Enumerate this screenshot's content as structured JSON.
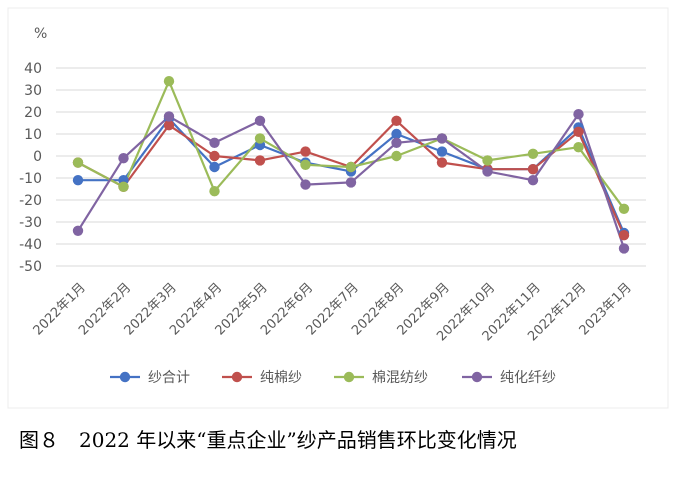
{
  "caption": "图８　2022 年以来“重点企业”纱产品销售环比变化情况",
  "colors": {
    "background": "#ffffff",
    "gridline": "#d9d9d9",
    "text": "#595959"
  },
  "chart_data": {
    "type": "line",
    "ylabel": "%",
    "ylim": [
      -50,
      40
    ],
    "yticks": [
      40,
      30,
      20,
      10,
      0,
      -10,
      -20,
      -30,
      -40,
      -50
    ],
    "ytick_labels": [
      "40",
      "30",
      "20",
      "10",
      "0",
      "-10",
      "-20",
      "-30",
      "-40",
      "-50"
    ],
    "grid": true,
    "legend_position": "bottom",
    "categories": [
      "2022年1月",
      "2022年2月",
      "2022年3月",
      "2022年4月",
      "2022年5月",
      "2022年6月",
      "2022年7月",
      "2022年8月",
      "2022年9月",
      "2022年10月",
      "2022年11月",
      "2022年12月",
      "2023年1月"
    ],
    "series": [
      {
        "name": "纱合计",
        "color": "#4472c4",
        "values": [
          -11,
          -11,
          17,
          -5,
          5,
          -3,
          -7,
          10,
          2,
          -6,
          -6,
          13,
          -35
        ]
      },
      {
        "name": "纯棉纱",
        "color": "#c0504d",
        "values": [
          -3,
          -14,
          14,
          0,
          -2,
          2,
          -5,
          16,
          -3,
          -6,
          -6,
          11,
          -36
        ]
      },
      {
        "name": "棉混纺纱",
        "color": "#9bbb59",
        "values": [
          -3,
          -14,
          34,
          -16,
          8,
          -4,
          -5,
          0,
          8,
          -2,
          1,
          4,
          -24
        ]
      },
      {
        "name": "纯化纤纱",
        "color": "#8064a2",
        "values": [
          -34,
          -1,
          18,
          6,
          16,
          -13,
          -12,
          6,
          8,
          -7,
          -11,
          19,
          -42
        ]
      }
    ]
  }
}
